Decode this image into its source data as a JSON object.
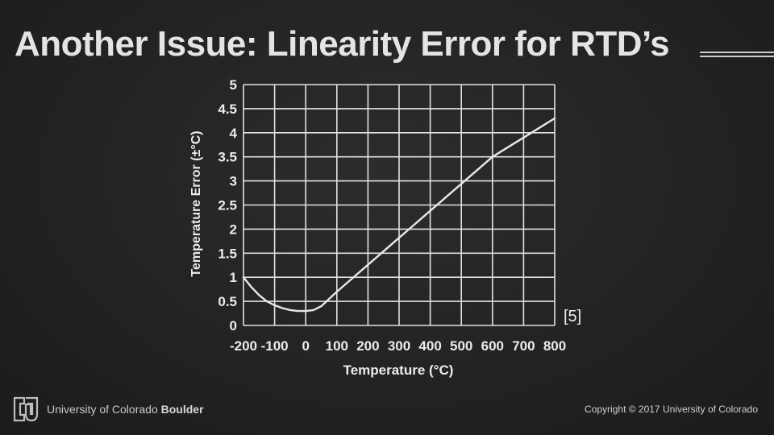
{
  "slide": {
    "title": "Another Issue: Linearity Error for RTD’s",
    "reference": "[5]"
  },
  "footer": {
    "university_regular": "University of Colorado ",
    "university_bold": "Boulder",
    "copyright": "Copyright © 2017 University of Colorado",
    "logo_icon": "cu-logo-icon"
  },
  "chart_data": {
    "type": "line",
    "xlabel": "Temperature (°C)",
    "ylabel": "Temperature Error (±°C)",
    "xlim": [
      -200,
      800
    ],
    "ylim": [
      0,
      5
    ],
    "x_ticks": [
      -200,
      -100,
      0,
      100,
      200,
      300,
      400,
      500,
      600,
      700,
      800
    ],
    "y_ticks": [
      0,
      0.5,
      1,
      1.5,
      2,
      2.5,
      3,
      3.5,
      4,
      4.5,
      5
    ],
    "x_tick_labels": [
      "-200",
      "-100",
      "0",
      "100",
      "200",
      "300",
      "400",
      "500",
      "600",
      "700",
      "800"
    ],
    "y_tick_labels": [
      "0",
      "0.5",
      "1",
      "1.5",
      "2",
      "2.5",
      "3",
      "3.5",
      "4",
      "4.5",
      "5"
    ],
    "grid": true,
    "series": [
      {
        "color": "#e8e8e8",
        "x": [
          -200,
          -175,
          -150,
          -125,
          -100,
          -75,
          -50,
          -25,
          0,
          25,
          50,
          75,
          100,
          150,
          200,
          300,
          400,
          500,
          600,
          700,
          800
        ],
        "y": [
          1.0,
          0.8,
          0.63,
          0.5,
          0.42,
          0.36,
          0.32,
          0.3,
          0.3,
          0.32,
          0.4,
          0.55,
          0.7,
          0.98,
          1.26,
          1.82,
          2.38,
          2.94,
          3.5,
          3.9,
          4.3
        ]
      }
    ]
  }
}
